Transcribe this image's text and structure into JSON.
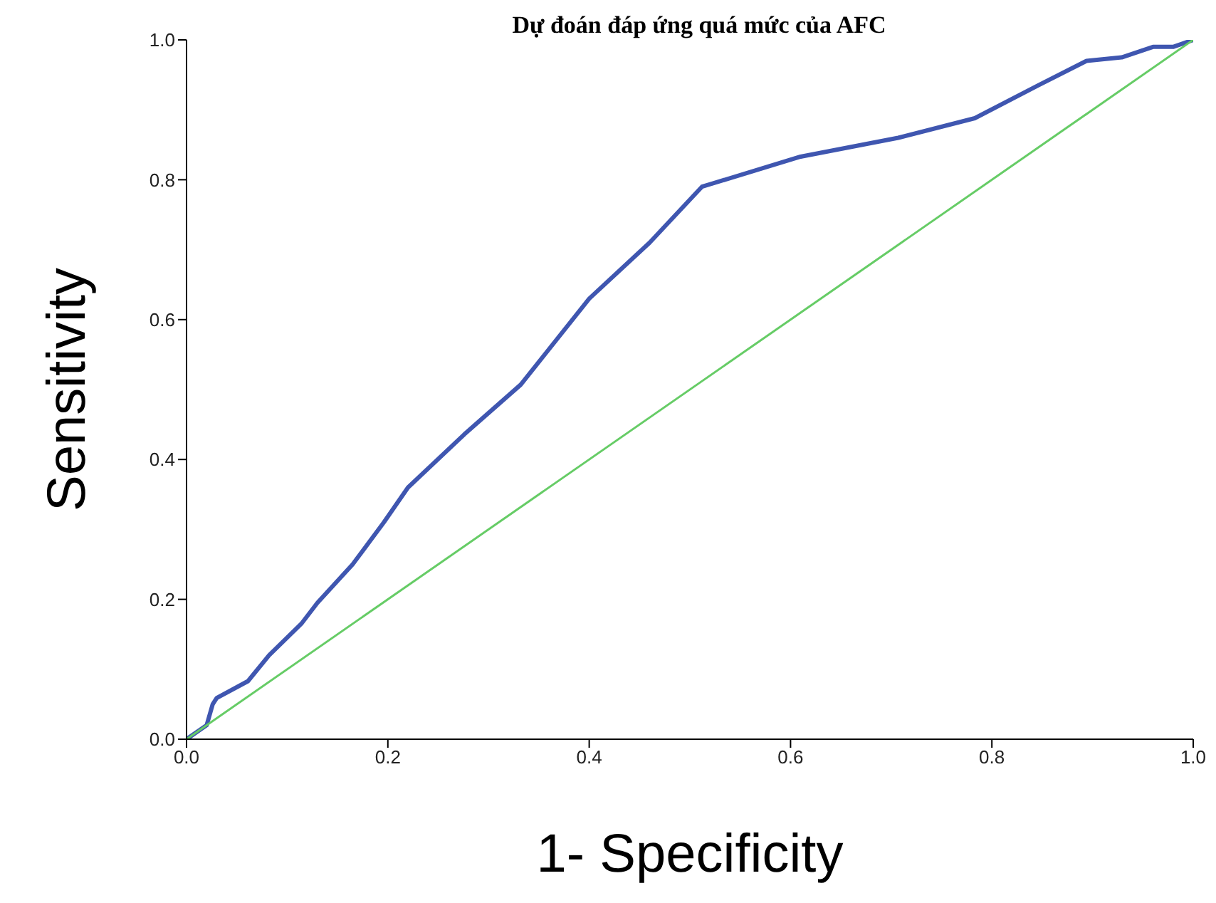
{
  "chart_data": {
    "type": "line",
    "title": "Dự đoán đáp ứng quá mức của AFC",
    "xlabel": "1- Specificity",
    "ylabel": "Sensitivity",
    "series": [
      {
        "color": "#3f56b0",
        "x": [
          0,
          0.02,
          0.026,
          0.03,
          0.061,
          0.082,
          0.114,
          0.13,
          0.165,
          0.196,
          0.22,
          0.276,
          0.332,
          0.4,
          0.46,
          0.512,
          0.61,
          0.707,
          0.783,
          0.846,
          0.894,
          0.929,
          0.96,
          0.98,
          1
        ],
        "values": [
          0,
          0.02,
          0.05,
          0.059,
          0.083,
          0.12,
          0.165,
          0.195,
          0.25,
          0.31,
          0.36,
          0.436,
          0.507,
          0.63,
          0.71,
          0.79,
          0.833,
          0.86,
          0.888,
          0.935,
          0.97,
          0.975,
          0.99,
          0.99,
          1
        ]
      },
      {
        "color": "#66cc66",
        "x": [
          0,
          1
        ],
        "values": [
          0,
          1
        ]
      }
    ],
    "xlim": [
      0,
      1
    ],
    "ylim": [
      0,
      1
    ],
    "xticks": [
      {
        "value": 0,
        "label": "0.0"
      },
      0.2,
      0.4,
      0.6,
      0.8,
      {
        "value": 1,
        "label": "1.0"
      }
    ],
    "yticks": [
      {
        "value": 0,
        "label": "0.0"
      },
      0.2,
      0.4,
      0.6,
      0.8,
      {
        "value": 1,
        "label": "1.0"
      }
    ],
    "grid": false,
    "marker": "none",
    "line_style": "solid"
  }
}
